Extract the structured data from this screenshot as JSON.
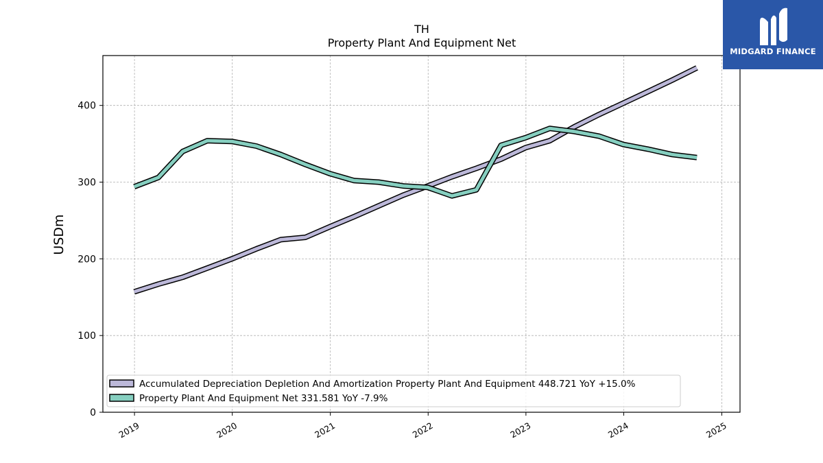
{
  "brand": {
    "name": "MIDGARD FINANCE",
    "bg_color": "#2a57a8"
  },
  "chart_data": {
    "type": "line",
    "title": "TH",
    "subtitle": "Property Plant And Equipment Net",
    "ylabel": "USDm",
    "xlabel": "",
    "ylim": [
      0,
      465
    ],
    "yticks": [
      0,
      100,
      200,
      300,
      400
    ],
    "xlim": [
      "2018-09-05",
      "2025-03-10"
    ],
    "xticks": [
      "2019",
      "2020",
      "2021",
      "2022",
      "2023",
      "2024",
      "2025"
    ],
    "grid": true,
    "legend_position": "lower-left",
    "x": [
      "2018-12-31",
      "2019-03-31",
      "2019-06-30",
      "2019-09-30",
      "2019-12-31",
      "2020-03-31",
      "2020-06-30",
      "2020-09-30",
      "2020-12-31",
      "2021-03-31",
      "2021-06-30",
      "2021-09-30",
      "2021-12-31",
      "2022-03-31",
      "2022-06-30",
      "2022-09-30",
      "2022-12-31",
      "2023-03-31",
      "2023-06-30",
      "2023-09-30",
      "2023-12-31",
      "2024-03-31",
      "2024-06-30",
      "2024-09-30"
    ],
    "series": [
      {
        "name": "Accumulated Depreciation Depletion And Amortization Property Plant And Equipment",
        "legend_label": "Accumulated Depreciation Depletion And Amortization Property Plant And Equipment  448.721 YoY +15.0%",
        "color": "#bcb8d9",
        "values": [
          157,
          167,
          176,
          188,
          200,
          213,
          225,
          228,
          242,
          255,
          269,
          283,
          295,
          307,
          318,
          330,
          345,
          354,
          372,
          388,
          403,
          418,
          433,
          449
        ]
      },
      {
        "name": "Property Plant And Equipment Net",
        "legend_label": "Property Plant And Equipment Net  331.581 YoY -7.9%",
        "color": "#86cfc0",
        "values": [
          294,
          306,
          340,
          354,
          353,
          347,
          336,
          323,
          311,
          302,
          300,
          295,
          293,
          282,
          290,
          348,
          358,
          370,
          366,
          360,
          349,
          343,
          336,
          332
        ]
      }
    ]
  }
}
